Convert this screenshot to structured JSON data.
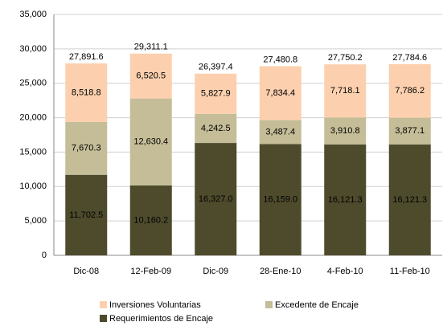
{
  "chart_data": {
    "type": "stacked_bar",
    "categories": [
      "Dic-08",
      "12-Feb-09",
      "Dic-09",
      "28-Ene-10",
      "4-Feb-10",
      "11-Feb-10"
    ],
    "series": [
      {
        "name": "Requerimientos de Encaje",
        "color": "#4d4b2c",
        "values": [
          11702.5,
          10160.2,
          16327.0,
          16159.0,
          16121.3,
          16121.3
        ],
        "value_labels": [
          "11,702.5",
          "10,160.2",
          "16,327.0",
          "16,159.0",
          "16,121.3",
          "16,121.3"
        ]
      },
      {
        "name": "Excedente de Encaje",
        "color": "#c4bd97",
        "values": [
          7670.3,
          12630.4,
          4242.5,
          3487.4,
          3910.8,
          3877.1
        ],
        "value_labels": [
          "7,670.3",
          "12,630.4",
          "4,242.5",
          "3,487.4",
          "3,910.8",
          "3,877.1"
        ]
      },
      {
        "name": "Inversiones Voluntarias",
        "color": "#fcd0ae",
        "values": [
          8518.8,
          6520.5,
          5827.9,
          7834.4,
          7718.1,
          7786.2
        ],
        "value_labels": [
          "8,518.8",
          "6,520.5",
          "5,827.9",
          "7,834.4",
          "7,718.1",
          "7,786.2"
        ]
      }
    ],
    "totals": [
      27891.6,
      29311.1,
      26397.4,
      27480.8,
      27750.2,
      27784.6
    ],
    "total_labels": [
      "27,891.6",
      "29,311.1",
      "26,397.4",
      "27,480.8",
      "27,750.2",
      "27,784.6"
    ],
    "ylim": [
      0,
      35000
    ],
    "yticks": [
      0,
      {
        "value": 5000,
        "label": "5,000"
      },
      {
        "value": 10000,
        "label": "10,000"
      },
      {
        "value": 15000,
        "label": "15,000"
      },
      {
        "value": 20000,
        "label": "20,000"
      },
      {
        "value": 25000,
        "label": "25,000"
      },
      {
        "value": 30000,
        "label": "30,000"
      },
      {
        "value": 35000,
        "label": "35,000"
      }
    ],
    "grid": true
  }
}
